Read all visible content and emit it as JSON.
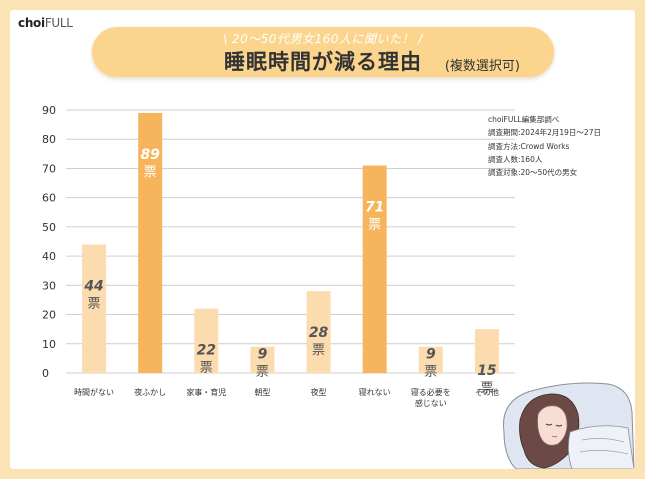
{
  "brand": {
    "logo_main": "choi",
    "logo_full": "FULL"
  },
  "header": {
    "subtitle": "\\ 20～50代男女160人に聞いた！ /",
    "title": "睡眠時間が減る理由",
    "title_note": "(複数選択可)"
  },
  "notes": [
    "choiFULL編集部調べ",
    "調査期間:2024年2月19日～27日",
    "調査方法:Crowd Works",
    "調査人数:160人",
    "調査対象:20～50代の男女"
  ],
  "colors": {
    "bar_light": "#fcdcae",
    "bar_dark": "#f6b55c",
    "background": "#fbe3b4",
    "pill": "#fbd58d"
  },
  "chart_data": {
    "type": "bar",
    "categories": [
      "時間がない",
      "夜ふかし",
      "家事・育児",
      "朝型",
      "夜型",
      "寝れない",
      "寝る必要を\n感じない",
      "その他"
    ],
    "values": [
      44,
      89,
      22,
      9,
      28,
      71,
      9,
      15
    ],
    "value_unit": "票",
    "highlighted": [
      1,
      5
    ],
    "yticks": [
      0,
      10,
      20,
      30,
      40,
      50,
      60,
      70,
      80,
      90
    ],
    "ylim": [
      0,
      90
    ],
    "grid": true,
    "xlabel": "",
    "ylabel": ""
  }
}
